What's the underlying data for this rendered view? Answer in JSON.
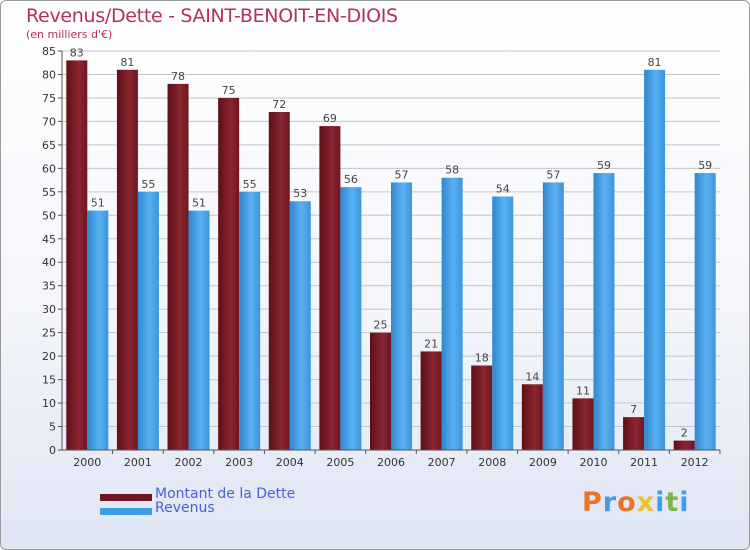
{
  "chart_data": {
    "type": "bar",
    "title": "Revenus/Dette - SAINT-BENOIT-EN-DIOIS",
    "subtitle": "(en milliers d'€)",
    "categories": [
      "2000",
      "2001",
      "2002",
      "2003",
      "2004",
      "2005",
      "2006",
      "2007",
      "2008",
      "2009",
      "2010",
      "2011",
      "2012"
    ],
    "series": [
      {
        "name": "Montant de la Dette",
        "color": "#7a1a24",
        "values": [
          83,
          81,
          78,
          75,
          72,
          69,
          25,
          21,
          18,
          14,
          11,
          7,
          2
        ]
      },
      {
        "name": "Revenus",
        "color": "#3d9de6",
        "values": [
          51,
          55,
          51,
          55,
          53,
          56,
          57,
          58,
          54,
          57,
          59,
          81,
          59
        ]
      }
    ],
    "ylim": [
      0,
      85
    ],
    "yticks": [
      0,
      5,
      10,
      15,
      20,
      25,
      30,
      35,
      40,
      45,
      50,
      55,
      60,
      65,
      70,
      75,
      80,
      85
    ],
    "grid": true,
    "legend_position": "bottom-left"
  },
  "logo": {
    "name": "proxiti-logo",
    "letters": [
      {
        "ch": "P",
        "color": "#e8762a"
      },
      {
        "ch": "r",
        "color": "#3d9de6"
      },
      {
        "ch": "o",
        "color": "#e8762a"
      },
      {
        "ch": "x",
        "color": "#e8c22a"
      },
      {
        "ch": "i",
        "color": "#3d9de6"
      },
      {
        "ch": "t",
        "color": "#7ab648"
      },
      {
        "ch": "i",
        "color": "#3d9de6"
      }
    ]
  }
}
